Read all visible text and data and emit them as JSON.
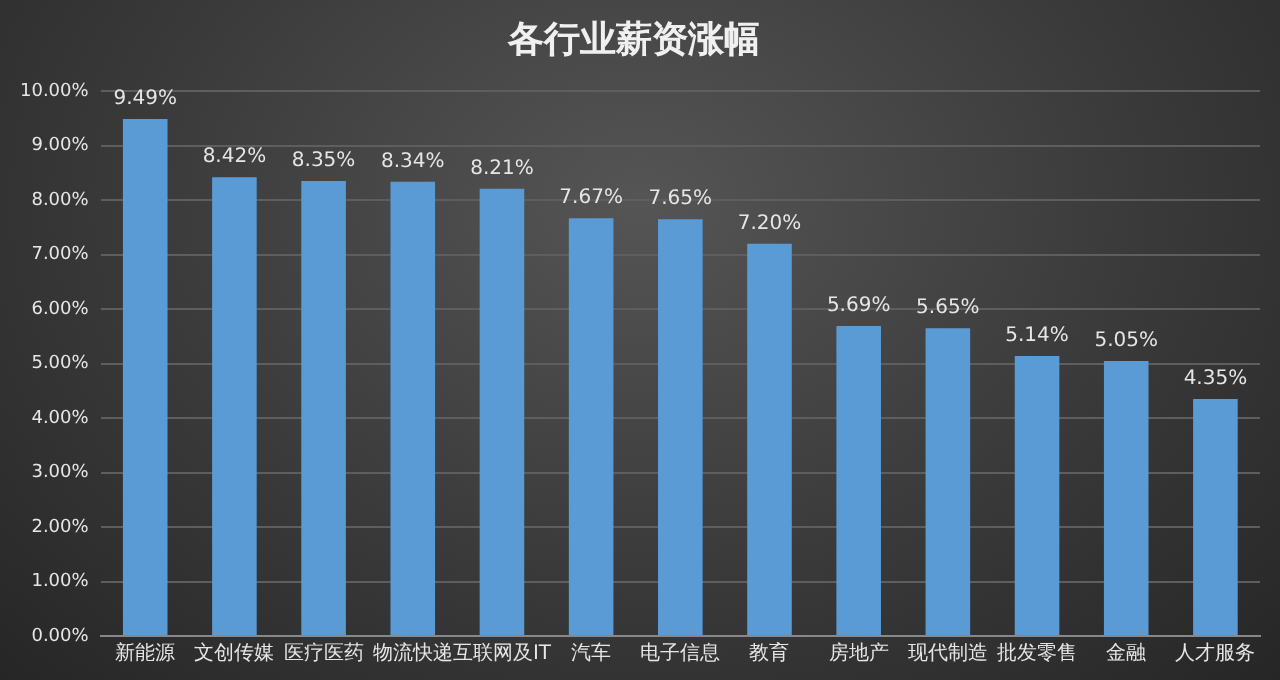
{
  "chart_data": {
    "type": "bar",
    "title": "各行业薪资涨幅",
    "categories": [
      "新能源",
      "文创传媒",
      "医疗医药",
      "物流快递",
      "互联网及IT",
      "汽车",
      "电子信息",
      "教育",
      "房地产",
      "现代制造",
      "批发零售",
      "金融",
      "人才服务"
    ],
    "values": [
      9.49,
      8.42,
      8.35,
      8.34,
      8.21,
      7.67,
      7.65,
      7.2,
      5.69,
      5.65,
      5.14,
      5.05,
      4.35
    ],
    "value_labels": [
      "9.49%",
      "8.42%",
      "8.35%",
      "8.34%",
      "8.21%",
      "7.67%",
      "7.65%",
      "7.20%",
      "5.69%",
      "5.65%",
      "5.14%",
      "5.05%",
      "4.35%"
    ],
    "color": "#5b9bd5",
    "ylim": [
      0,
      10
    ],
    "yticks": [
      {
        "value": 0,
        "label": "0.00%"
      },
      {
        "value": 1,
        "label": "1.00%"
      },
      {
        "value": 2,
        "label": "2.00%"
      },
      {
        "value": 3,
        "label": "3.00%"
      },
      {
        "value": 4,
        "label": "4.00%"
      },
      {
        "value": 5,
        "label": "5.00%"
      },
      {
        "value": 6,
        "label": "6.00%"
      },
      {
        "value": 7,
        "label": "7.00%"
      },
      {
        "value": 8,
        "label": "8.00%"
      },
      {
        "value": 9,
        "label": "9.00%"
      },
      {
        "value": 10,
        "label": "10.00%"
      }
    ],
    "grid": "y",
    "legend": false
  }
}
